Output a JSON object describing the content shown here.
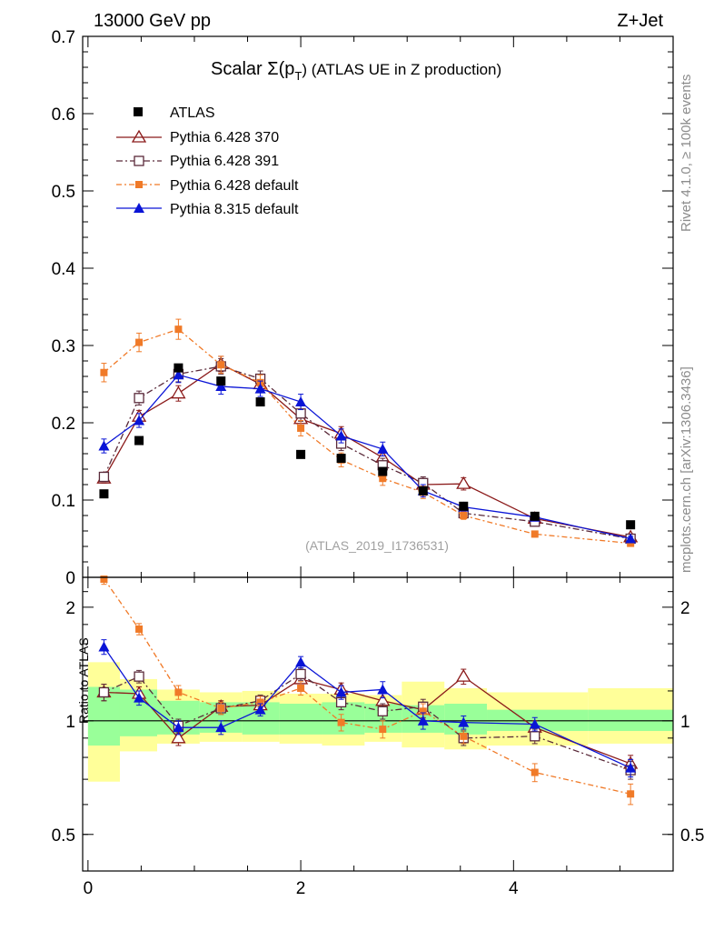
{
  "header": {
    "left": "13000 GeV pp",
    "right": "Z+Jet"
  },
  "side_labels": {
    "top": "Rivet 4.1.0, ≥ 100k events",
    "bottom": "mcplots.cern.ch [arXiv:1306.3436]"
  },
  "chart_data": {
    "type": "scatter",
    "title_pre": "Scalar Σ(p",
    "title_sub": "T",
    "title_post": ") (ATLAS UE in Z production)",
    "watermark": "(ATLAS_2019_I1736531)",
    "ylabel_ratio": "Ratio to ATLAS",
    "xlim": [
      -0.05,
      5.5
    ],
    "ylim_main": [
      0,
      0.7
    ],
    "ylim_ratio": [
      0.4,
      2.4
    ],
    "x_ticks": [
      "0",
      "2",
      "4"
    ],
    "y_ticks_main": [
      "0",
      "0.1",
      "0.2",
      "0.3",
      "0.4",
      "0.5",
      "0.6",
      "0.7"
    ],
    "y_ticks_ratio": [
      "0.5",
      "1",
      "2"
    ],
    "x": [
      0.15,
      0.48,
      0.85,
      1.25,
      1.62,
      2.0,
      2.38,
      2.77,
      3.15,
      3.53,
      4.2,
      5.1
    ],
    "data": {
      "name": "ATLAS",
      "values": [
        0.108,
        0.177,
        0.271,
        0.254,
        0.227,
        0.159,
        0.154,
        0.137,
        0.112,
        0.092,
        0.079,
        0.068
      ]
    },
    "bands": {
      "edges": [
        0.0,
        0.3,
        0.65,
        1.05,
        1.45,
        1.8,
        2.2,
        2.6,
        2.95,
        3.35,
        3.75,
        4.7,
        5.5
      ],
      "green": [
        [
          0.86,
          1.23
        ],
        [
          0.91,
          1.21
        ],
        [
          0.92,
          1.13
        ],
        [
          0.93,
          1.12
        ],
        [
          0.92,
          1.12
        ],
        [
          0.92,
          1.11
        ],
        [
          0.92,
          1.12
        ],
        [
          0.93,
          1.11
        ],
        [
          0.93,
          1.1
        ],
        [
          0.92,
          1.11
        ],
        [
          0.94,
          1.07
        ],
        [
          0.94,
          1.07
        ]
      ],
      "yellow": [
        [
          0.69,
          1.43
        ],
        [
          0.83,
          1.29
        ],
        [
          0.87,
          1.21
        ],
        [
          0.88,
          1.19
        ],
        [
          0.88,
          1.2
        ],
        [
          0.87,
          1.18
        ],
        [
          0.86,
          1.18
        ],
        [
          0.88,
          1.17
        ],
        [
          0.85,
          1.27
        ],
        [
          0.84,
          1.22
        ],
        [
          0.86,
          1.19
        ],
        [
          0.87,
          1.22
        ]
      ]
    },
    "series": [
      {
        "name": "Pythia 6.428 370",
        "color": "#8b1a1a",
        "dash": "none",
        "marker": "triangle-open",
        "values": [
          0.128,
          0.208,
          0.238,
          0.276,
          0.25,
          0.205,
          0.186,
          0.155,
          0.12,
          0.121,
          0.076,
          0.052
        ],
        "errors": [
          0.006,
          0.008,
          0.01,
          0.01,
          0.01,
          0.01,
          0.009,
          0.009,
          0.008,
          0.008,
          0.004,
          0.003
        ],
        "ratio": [
          1.19,
          1.18,
          0.9,
          1.09,
          1.1,
          1.29,
          1.21,
          1.13,
          1.07,
          1.31,
          0.96,
          0.77
        ],
        "ratio_err": [
          0.06,
          0.05,
          0.04,
          0.04,
          0.04,
          0.05,
          0.05,
          0.05,
          0.05,
          0.06,
          0.04,
          0.04
        ]
      },
      {
        "name": "Pythia 6.428 391",
        "color": "#5a2a3a",
        "dash": "7,3,2,3",
        "marker": "square-open",
        "values": [
          0.13,
          0.232,
          0.263,
          0.273,
          0.257,
          0.212,
          0.173,
          0.145,
          0.122,
          0.083,
          0.072,
          0.05
        ],
        "errors": [
          0.006,
          0.009,
          0.01,
          0.01,
          0.01,
          0.01,
          0.009,
          0.009,
          0.008,
          0.005,
          0.004,
          0.003
        ],
        "ratio": [
          1.19,
          1.31,
          0.97,
          1.08,
          1.13,
          1.33,
          1.12,
          1.06,
          1.09,
          0.9,
          0.91,
          0.74
        ],
        "ratio_err": [
          0.06,
          0.05,
          0.04,
          0.04,
          0.04,
          0.05,
          0.05,
          0.05,
          0.05,
          0.04,
          0.04,
          0.04
        ]
      },
      {
        "name": "Pythia 6.428 default",
        "color": "#f07a28",
        "dash": "6,3,2,3",
        "marker": "square-filled",
        "values": [
          0.265,
          0.304,
          0.321,
          0.275,
          0.252,
          0.193,
          0.152,
          0.128,
          0.11,
          0.08,
          0.056,
          0.044
        ],
        "errors": [
          0.012,
          0.012,
          0.013,
          0.011,
          0.01,
          0.01,
          0.009,
          0.009,
          0.008,
          0.005,
          0.004,
          0.003
        ],
        "ratio": [
          2.38,
          1.75,
          1.19,
          1.08,
          1.12,
          1.22,
          0.99,
          0.95,
          1.06,
          0.91,
          0.73,
          0.64
        ],
        "ratio_err": [
          0.08,
          0.06,
          0.05,
          0.04,
          0.04,
          0.05,
          0.05,
          0.05,
          0.05,
          0.04,
          0.04,
          0.04
        ]
      },
      {
        "name": "Pythia 8.315 default",
        "color": "#0a14d6",
        "dash": "none",
        "marker": "triangle-filled",
        "values": [
          0.17,
          0.203,
          0.262,
          0.247,
          0.244,
          0.227,
          0.183,
          0.166,
          0.112,
          0.091,
          0.078,
          0.05
        ],
        "errors": [
          0.009,
          0.009,
          0.01,
          0.01,
          0.01,
          0.01,
          0.009,
          0.009,
          0.008,
          0.005,
          0.004,
          0.003
        ],
        "ratio": [
          1.57,
          1.15,
          0.96,
          0.96,
          1.07,
          1.43,
          1.19,
          1.21,
          1.0,
          0.99,
          0.98,
          0.75
        ],
        "ratio_err": [
          0.07,
          0.05,
          0.04,
          0.04,
          0.04,
          0.05,
          0.05,
          0.06,
          0.05,
          0.04,
          0.04,
          0.04
        ]
      }
    ]
  }
}
